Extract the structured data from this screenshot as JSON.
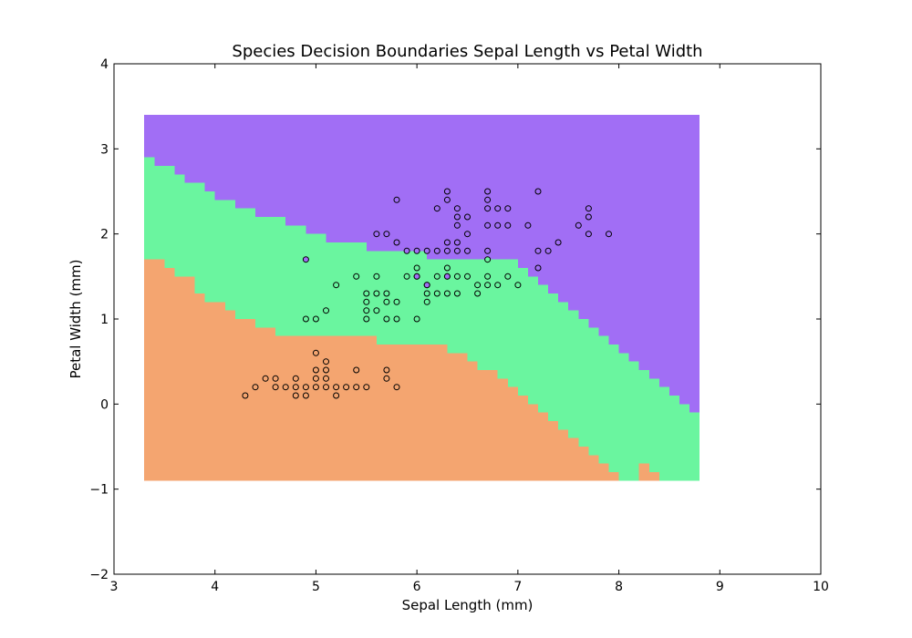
{
  "chart_data": {
    "type": "scatter",
    "title": "Species Decision Boundaries Sepal Length vs Petal Width",
    "xlabel": "Sepal Length (mm)",
    "ylabel": "Petal Width (mm)",
    "xlim": [
      3,
      10
    ],
    "ylim": [
      -2,
      4
    ],
    "xticks": [
      "3",
      "4",
      "5",
      "6",
      "7",
      "8",
      "9",
      "10"
    ],
    "yticks": [
      "−2",
      "−1",
      "0",
      "1",
      "2",
      "3",
      "4"
    ],
    "grid": false,
    "legend": "none",
    "regions": {
      "x_range": [
        3.3,
        8.8
      ],
      "y_range": [
        -0.9,
        3.4
      ],
      "colors": [
        "#f4a570",
        "#6af59f",
        "#a16ef5"
      ],
      "upper_boundary_of_class_0": [
        [
          3.3,
          1.7
        ],
        [
          3.5,
          1.6
        ],
        [
          3.6,
          1.5
        ],
        [
          3.8,
          1.3
        ],
        [
          3.9,
          1.2
        ],
        [
          4.1,
          1.1
        ],
        [
          4.2,
          1.0
        ],
        [
          4.4,
          0.9
        ],
        [
          4.6,
          0.8
        ],
        [
          5.0,
          0.8
        ],
        [
          5.6,
          0.7
        ],
        [
          6.0,
          0.7
        ],
        [
          6.3,
          0.6
        ],
        [
          6.5,
          0.5
        ],
        [
          6.6,
          0.4
        ],
        [
          6.8,
          0.3
        ],
        [
          6.9,
          0.2
        ],
        [
          7.0,
          0.1
        ],
        [
          7.1,
          0.0
        ],
        [
          7.2,
          -0.1
        ],
        [
          7.3,
          -0.2
        ],
        [
          7.4,
          -0.3
        ],
        [
          7.5,
          -0.4
        ],
        [
          7.6,
          -0.5
        ],
        [
          7.7,
          -0.6
        ],
        [
          7.8,
          -0.7
        ],
        [
          7.9,
          -0.8
        ],
        [
          8.0,
          -0.9
        ],
        [
          8.2,
          -0.7
        ],
        [
          8.3,
          -0.8
        ],
        [
          8.4,
          -0.9
        ],
        [
          8.8,
          -0.9
        ]
      ],
      "upper_boundary_of_class_1": [
        [
          3.3,
          2.9
        ],
        [
          3.4,
          2.8
        ],
        [
          3.6,
          2.7
        ],
        [
          3.7,
          2.6
        ],
        [
          3.9,
          2.5
        ],
        [
          4.0,
          2.4
        ],
        [
          4.2,
          2.3
        ],
        [
          4.4,
          2.2
        ],
        [
          4.7,
          2.1
        ],
        [
          4.9,
          2.0
        ],
        [
          5.1,
          1.9
        ],
        [
          5.5,
          1.8
        ],
        [
          6.1,
          1.7
        ],
        [
          6.9,
          1.7
        ],
        [
          7.0,
          1.6
        ],
        [
          7.1,
          1.5
        ],
        [
          7.2,
          1.4
        ],
        [
          7.3,
          1.3
        ],
        [
          7.4,
          1.2
        ],
        [
          7.5,
          1.1
        ],
        [
          7.6,
          1.0
        ],
        [
          7.7,
          0.9
        ],
        [
          7.8,
          0.8
        ],
        [
          7.9,
          0.7
        ],
        [
          8.0,
          0.6
        ],
        [
          8.1,
          0.5
        ],
        [
          8.2,
          0.4
        ],
        [
          8.3,
          0.3
        ],
        [
          8.4,
          0.2
        ],
        [
          8.5,
          0.1
        ],
        [
          8.6,
          0.0
        ],
        [
          8.7,
          -0.1
        ],
        [
          8.8,
          -0.2
        ]
      ]
    },
    "series": [
      {
        "color": "#f4a570",
        "points": [
          [
            4.3,
            0.1
          ],
          [
            4.4,
            0.2
          ],
          [
            4.5,
            0.3
          ],
          [
            4.6,
            0.2
          ],
          [
            4.6,
            0.3
          ],
          [
            4.7,
            0.2
          ],
          [
            4.8,
            0.1
          ],
          [
            4.8,
            0.2
          ],
          [
            4.8,
            0.3
          ],
          [
            4.9,
            0.1
          ],
          [
            4.9,
            0.2
          ],
          [
            5.0,
            0.2
          ],
          [
            5.0,
            0.3
          ],
          [
            5.0,
            0.4
          ],
          [
            5.0,
            0.6
          ],
          [
            5.1,
            0.2
          ],
          [
            5.1,
            0.3
          ],
          [
            5.1,
            0.4
          ],
          [
            5.1,
            0.5
          ],
          [
            5.2,
            0.1
          ],
          [
            5.2,
            0.2
          ],
          [
            5.3,
            0.2
          ],
          [
            5.4,
            0.2
          ],
          [
            5.4,
            0.4
          ],
          [
            5.5,
            0.2
          ],
          [
            5.7,
            0.3
          ],
          [
            5.7,
            0.4
          ],
          [
            5.8,
            0.2
          ]
        ]
      },
      {
        "color": "#6af59f",
        "points": [
          [
            4.9,
            1.0
          ],
          [
            5.0,
            1.0
          ],
          [
            5.1,
            1.1
          ],
          [
            5.2,
            1.4
          ],
          [
            5.4,
            1.5
          ],
          [
            5.5,
            1.0
          ],
          [
            5.5,
            1.1
          ],
          [
            5.5,
            1.2
          ],
          [
            5.5,
            1.3
          ],
          [
            5.6,
            1.1
          ],
          [
            5.6,
            1.3
          ],
          [
            5.6,
            1.5
          ],
          [
            5.7,
            1.0
          ],
          [
            5.7,
            1.2
          ],
          [
            5.7,
            1.3
          ],
          [
            5.8,
            1.0
          ],
          [
            5.8,
            1.2
          ],
          [
            5.9,
            1.5
          ],
          [
            6.0,
            1.0
          ],
          [
            6.0,
            1.5
          ],
          [
            6.0,
            1.6
          ],
          [
            6.1,
            1.2
          ],
          [
            6.1,
            1.3
          ],
          [
            6.1,
            1.4
          ],
          [
            6.2,
            1.3
          ],
          [
            6.2,
            1.5
          ],
          [
            6.3,
            1.3
          ],
          [
            6.3,
            1.5
          ],
          [
            6.3,
            1.6
          ],
          [
            6.4,
            1.3
          ],
          [
            6.4,
            1.5
          ],
          [
            6.5,
            1.5
          ],
          [
            6.6,
            1.3
          ],
          [
            6.6,
            1.4
          ],
          [
            6.7,
            1.4
          ],
          [
            6.7,
            1.5
          ],
          [
            6.7,
            1.7
          ],
          [
            6.8,
            1.4
          ],
          [
            6.9,
            1.5
          ],
          [
            7.0,
            1.4
          ]
        ]
      },
      {
        "color": "#a16ef5",
        "points": [
          [
            4.9,
            1.7
          ],
          [
            5.6,
            2.0
          ],
          [
            5.7,
            2.0
          ],
          [
            5.8,
            1.9
          ],
          [
            5.8,
            2.4
          ],
          [
            5.9,
            1.8
          ],
          [
            6.0,
            1.5
          ],
          [
            6.0,
            1.8
          ],
          [
            6.1,
            1.4
          ],
          [
            6.1,
            1.8
          ],
          [
            6.2,
            1.8
          ],
          [
            6.2,
            2.3
          ],
          [
            6.3,
            1.5
          ],
          [
            6.3,
            1.8
          ],
          [
            6.3,
            1.9
          ],
          [
            6.3,
            2.4
          ],
          [
            6.3,
            2.5
          ],
          [
            6.4,
            1.8
          ],
          [
            6.4,
            1.9
          ],
          [
            6.4,
            2.1
          ],
          [
            6.4,
            2.2
          ],
          [
            6.4,
            2.3
          ],
          [
            6.5,
            1.8
          ],
          [
            6.5,
            2.0
          ],
          [
            6.5,
            2.2
          ],
          [
            6.7,
            1.8
          ],
          [
            6.7,
            2.1
          ],
          [
            6.7,
            2.3
          ],
          [
            6.7,
            2.4
          ],
          [
            6.7,
            2.5
          ],
          [
            6.8,
            2.1
          ],
          [
            6.8,
            2.3
          ],
          [
            6.9,
            2.1
          ],
          [
            6.9,
            2.3
          ],
          [
            7.1,
            2.1
          ],
          [
            7.2,
            1.6
          ],
          [
            7.2,
            1.8
          ],
          [
            7.2,
            2.5
          ],
          [
            7.3,
            1.8
          ],
          [
            7.4,
            1.9
          ],
          [
            7.6,
            2.1
          ],
          [
            7.7,
            2.0
          ],
          [
            7.7,
            2.2
          ],
          [
            7.7,
            2.3
          ],
          [
            7.9,
            2.0
          ]
        ]
      }
    ]
  }
}
